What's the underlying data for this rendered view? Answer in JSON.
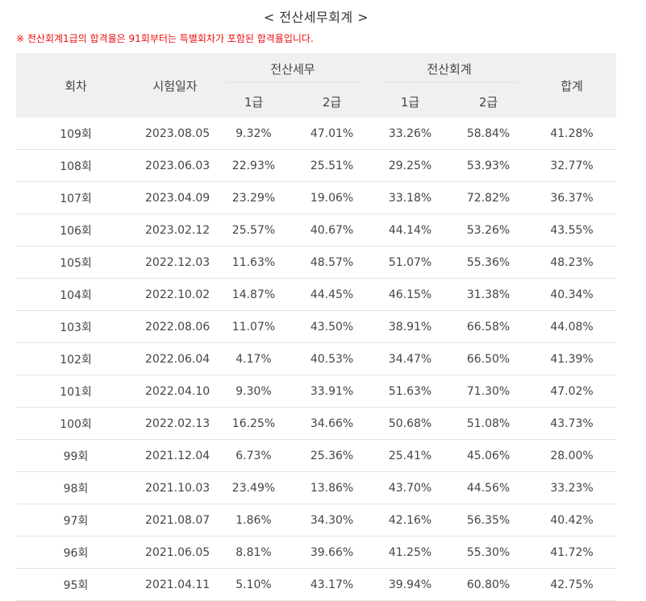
{
  "title": "< 전산세무회계 >",
  "notice": "※ 전산회계1급의 합격율은 91회부터는 특별회차가 포함된 합격율입니다.",
  "colors": {
    "notice": "#e8100c",
    "header_bg": "#f0f0f0",
    "row_border": "#e4e4e4"
  },
  "table": {
    "headers": {
      "round": "회차",
      "exam_date": "시험일자",
      "tax_group": "전산세무",
      "accounting_group": "전산회계",
      "total": "합계",
      "tax_grade1": "1급",
      "tax_grade2": "2급",
      "acc_grade1": "1급",
      "acc_grade2": "2급"
    },
    "rows": [
      {
        "round": "109회",
        "date": "2023.08.05",
        "tax1": "9.32%",
        "tax2": "47.01%",
        "acc1": "33.26%",
        "acc2": "58.84%",
        "total": "41.28%"
      },
      {
        "round": "108회",
        "date": "2023.06.03",
        "tax1": "22.93%",
        "tax2": "25.51%",
        "acc1": "29.25%",
        "acc2": "53.93%",
        "total": "32.77%"
      },
      {
        "round": "107회",
        "date": "2023.04.09",
        "tax1": "23.29%",
        "tax2": "19.06%",
        "acc1": "33.18%",
        "acc2": "72.82%",
        "total": "36.37%"
      },
      {
        "round": "106회",
        "date": "2023.02.12",
        "tax1": "25.57%",
        "tax2": "40.67%",
        "acc1": "44.14%",
        "acc2": "53.26%",
        "total": "43.55%"
      },
      {
        "round": "105회",
        "date": "2022.12.03",
        "tax1": "11.63%",
        "tax2": "48.57%",
        "acc1": "51.07%",
        "acc2": "55.36%",
        "total": "48.23%"
      },
      {
        "round": "104회",
        "date": "2022.10.02",
        "tax1": "14.87%",
        "tax2": "44.45%",
        "acc1": "46.15%",
        "acc2": "31.38%",
        "total": "40.34%"
      },
      {
        "round": "103회",
        "date": "2022.08.06",
        "tax1": "11.07%",
        "tax2": "43.50%",
        "acc1": "38.91%",
        "acc2": "66.58%",
        "total": "44.08%"
      },
      {
        "round": "102회",
        "date": "2022.06.04",
        "tax1": "4.17%",
        "tax2": "40.53%",
        "acc1": "34.47%",
        "acc2": "66.50%",
        "total": "41.39%"
      },
      {
        "round": "101회",
        "date": "2022.04.10",
        "tax1": "9.30%",
        "tax2": "33.91%",
        "acc1": "51.63%",
        "acc2": "71.30%",
        "total": "47.02%"
      },
      {
        "round": "100회",
        "date": "2022.02.13",
        "tax1": "16.25%",
        "tax2": "34.66%",
        "acc1": "50.68%",
        "acc2": "51.08%",
        "total": "43.73%"
      },
      {
        "round": "99회",
        "date": "2021.12.04",
        "tax1": "6.73%",
        "tax2": "25.36%",
        "acc1": "25.41%",
        "acc2": "45.06%",
        "total": "28.00%"
      },
      {
        "round": "98회",
        "date": "2021.10.03",
        "tax1": "23.49%",
        "tax2": "13.86%",
        "acc1": "43.70%",
        "acc2": "44.56%",
        "total": "33.23%"
      },
      {
        "round": "97회",
        "date": "2021.08.07",
        "tax1": "1.86%",
        "tax2": "34.30%",
        "acc1": "42.16%",
        "acc2": "56.35%",
        "total": "40.42%"
      },
      {
        "round": "96회",
        "date": "2021.06.05",
        "tax1": "8.81%",
        "tax2": "39.66%",
        "acc1": "41.25%",
        "acc2": "55.30%",
        "total": "41.72%"
      },
      {
        "round": "95회",
        "date": "2021.04.11",
        "tax1": "5.10%",
        "tax2": "43.17%",
        "acc1": "39.94%",
        "acc2": "60.80%",
        "total": "42.75%"
      }
    ]
  }
}
